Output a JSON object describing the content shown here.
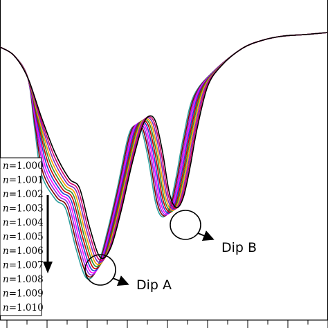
{
  "chart_data": {
    "type": "line",
    "title": "",
    "xlabel": "",
    "ylabel": "",
    "grid": false,
    "legend_placement": "left",
    "xlim": [
      0,
      474
    ],
    "ylim": [
      -474,
      0
    ],
    "series": [
      {
        "name": "n=1.000",
        "color": "#000000",
        "shift_x": 0,
        "shift_y": 0
      },
      {
        "name": "n=1.001",
        "color": "#d4006a",
        "shift_x": -2,
        "shift_y": 3
      },
      {
        "name": "n=1.002",
        "color": "#7a2fbf",
        "shift_x": -4,
        "shift_y": 6
      },
      {
        "name": "n=1.003",
        "color": "#ff9d00",
        "shift_x": -6,
        "shift_y": 9
      },
      {
        "name": "n=1.004",
        "color": "#2f8f2f",
        "shift_x": -8,
        "shift_y": 12
      },
      {
        "name": "n=1.005",
        "color": "#c80000",
        "shift_x": -10,
        "shift_y": 15
      },
      {
        "name": "n=1.006",
        "color": "#1f3fd6",
        "shift_x": -12,
        "shift_y": 18
      },
      {
        "name": "n=1.007",
        "color": "#ff00ff",
        "shift_x": -14,
        "shift_y": 21
      },
      {
        "name": "n=1.008",
        "color": "#8a2be2",
        "shift_x": -16,
        "shift_y": 24
      },
      {
        "name": "n=1.009",
        "color": "#7f0000",
        "shift_x": -18,
        "shift_y": 27
      },
      {
        "name": "n=1.010",
        "color": "#2ca0a0",
        "shift_x": -20,
        "shift_y": 30
      }
    ],
    "base_curve": {
      "x": [
        0,
        20,
        40,
        60,
        80,
        100,
        115,
        130,
        145,
        160,
        175,
        190,
        205,
        215,
        225,
        235,
        245,
        255,
        265,
        275,
        285,
        300,
        320,
        350,
        380,
        410,
        440,
        474
      ],
      "y": [
        -68,
        -80,
        -112,
        -170,
        -222,
        -258,
        -272,
        -330,
        -372,
        -358,
        -305,
        -240,
        -185,
        -168,
        -176,
        -220,
        -280,
        -300,
        -285,
        -240,
        -185,
        -125,
        -95,
        -70,
        -58,
        -52,
        -50,
        -47
      ]
    },
    "annotations": [
      {
        "label": "Dip A",
        "x": 145,
        "y": -390
      },
      {
        "label": "Dip B",
        "x": 268,
        "y": -325
      }
    ]
  }
}
